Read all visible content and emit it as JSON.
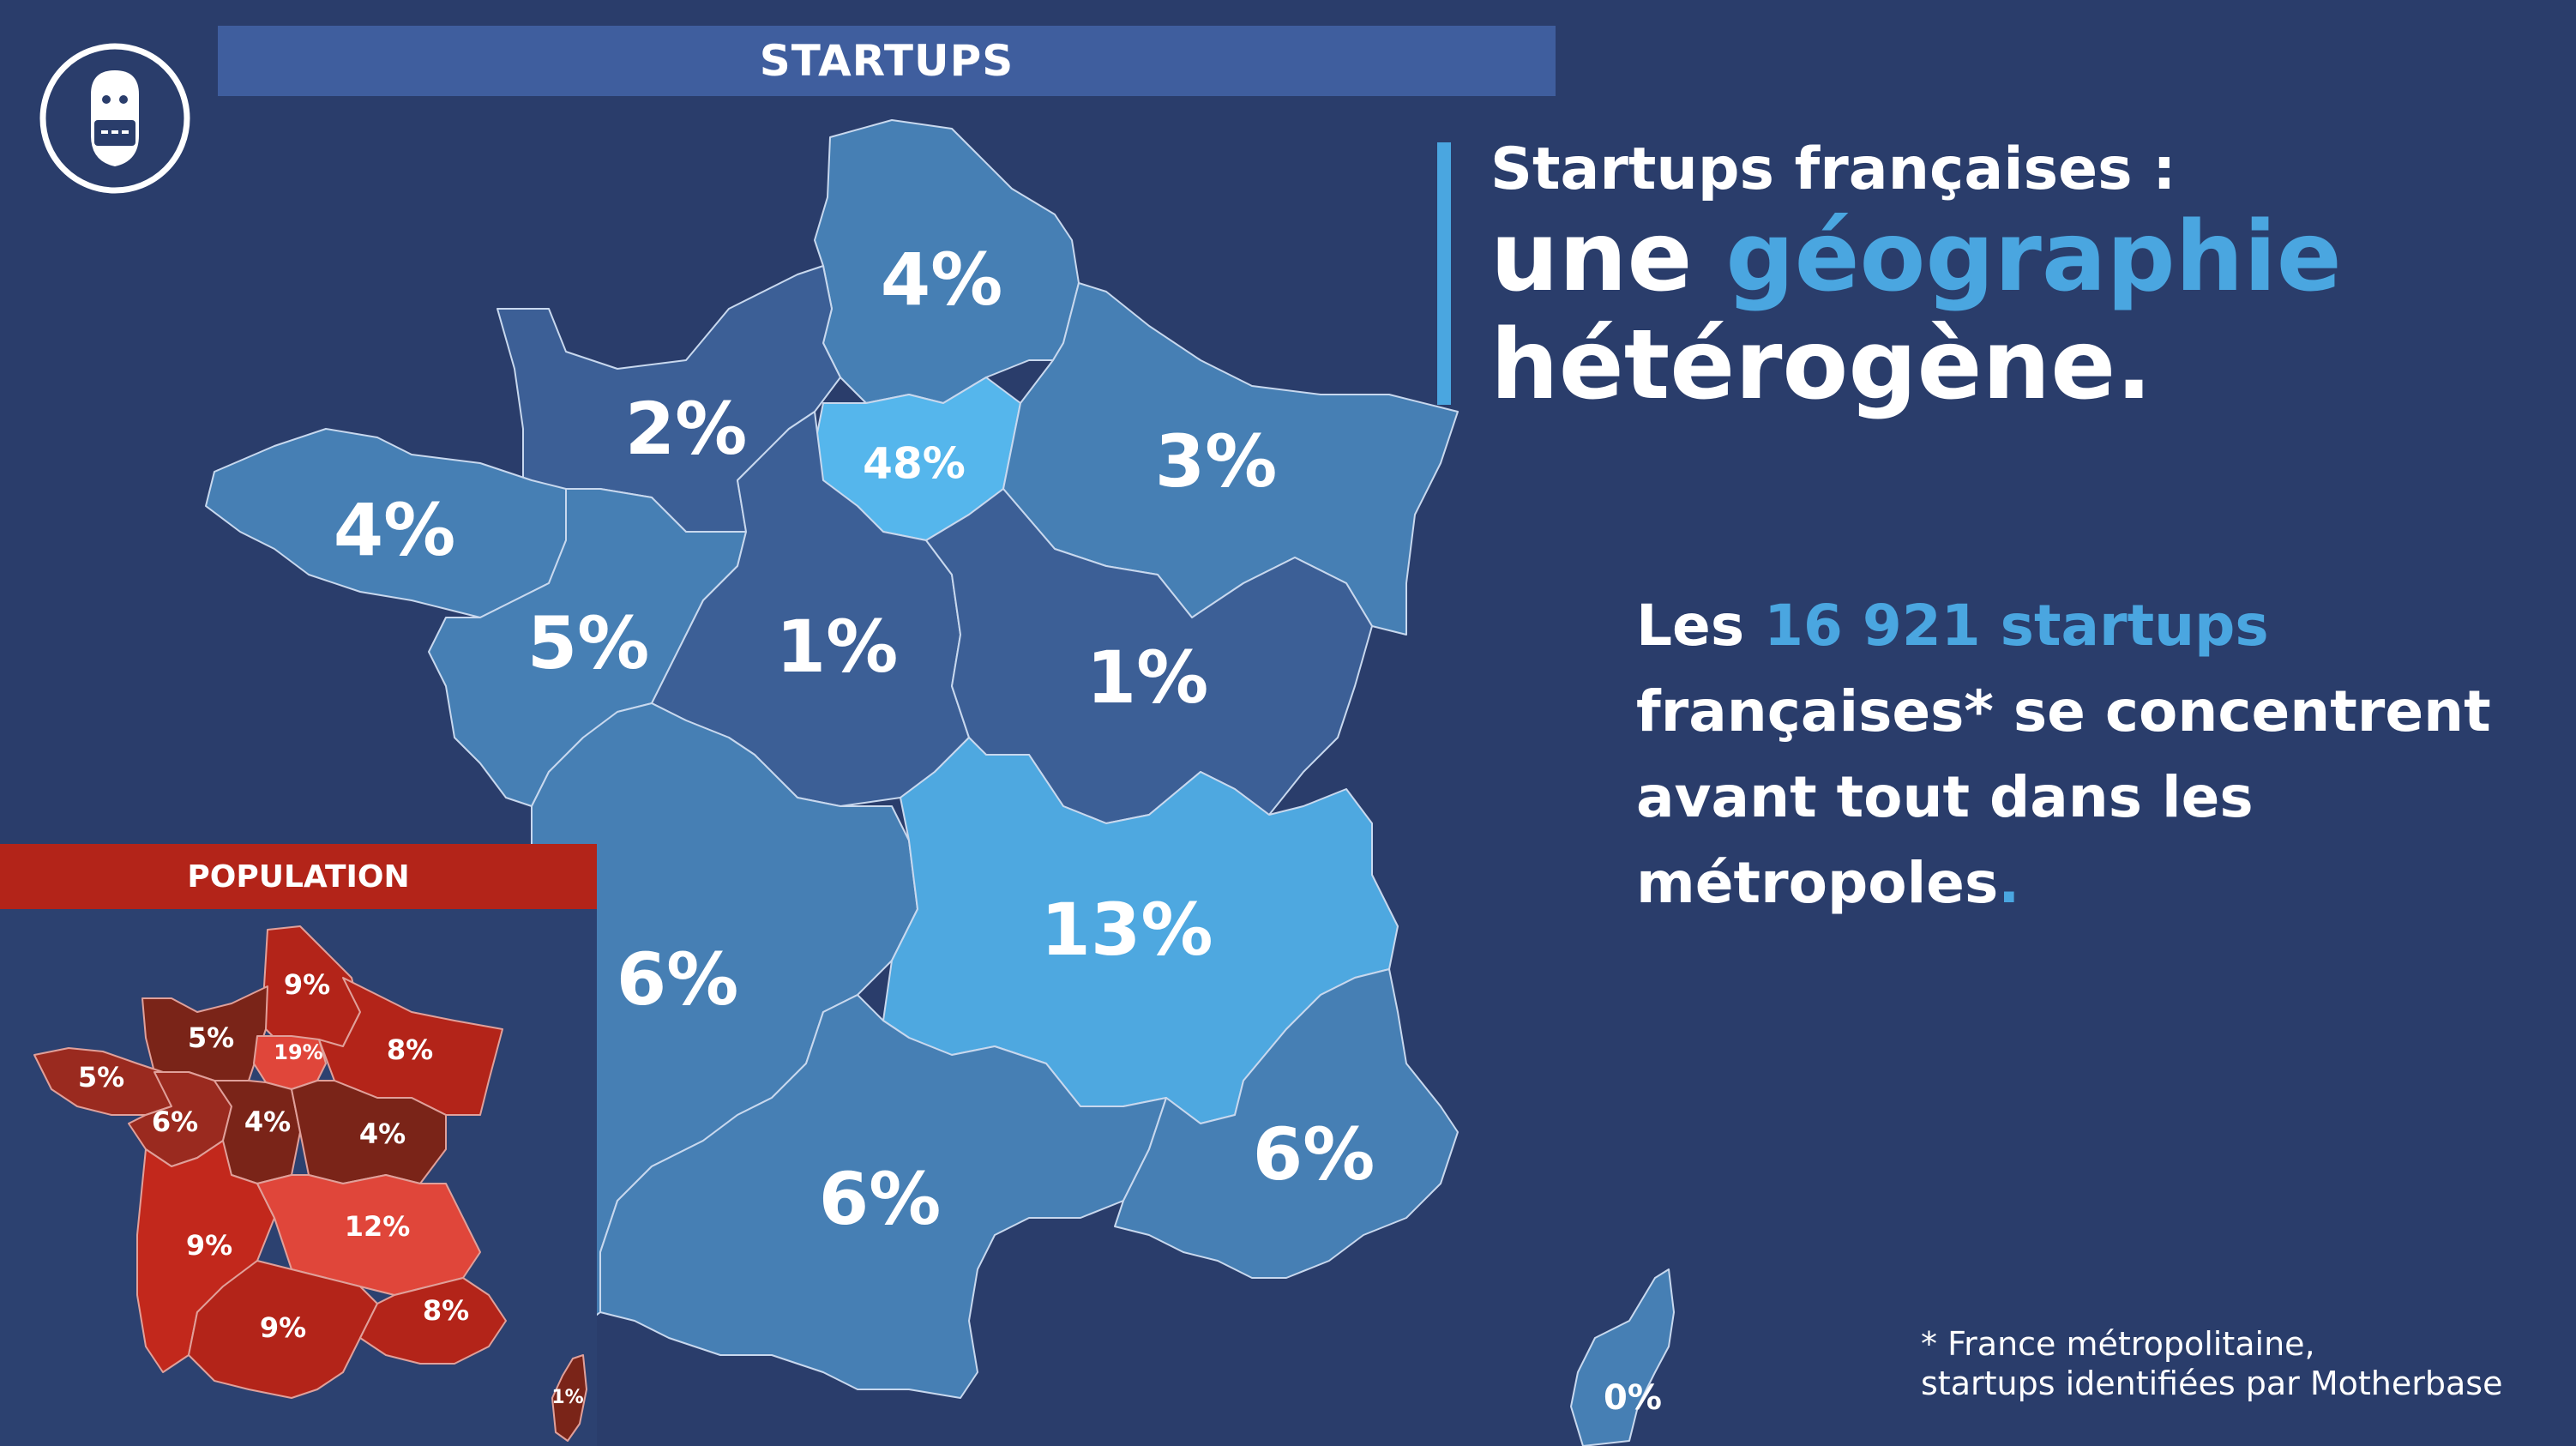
{
  "header": {
    "banner": "STARTUPS"
  },
  "logo": {
    "icon": "robot-head-icon"
  },
  "headline": {
    "line1": "Startups françaises :",
    "line2_a": "une ",
    "line2_b": "géographie",
    "line3": "hétérogène."
  },
  "body": {
    "p1": "Les ",
    "p2": "16 921 startups",
    "p3": "françaises* se concentrent avant tout dans les métropoles",
    "p4": "."
  },
  "footnote": {
    "line1": "* France métropolitaine,",
    "line2": "startups identifiées par Motherbase"
  },
  "colors": {
    "background": "#2a3d6b",
    "accent": "#4aa6e0",
    "region_dark": "#3c5f96",
    "region_mid": "#467fb4",
    "region_light": "#4ea8e0",
    "region_idf": "#55b6ec",
    "population_red": "#b32419"
  },
  "startups_map": {
    "hauts_de_france": "4%",
    "normandie": "2%",
    "ile_de_france": "48%",
    "grand_est": "3%",
    "bretagne": "4%",
    "pays_de_la_loire": "5%",
    "centre_val_de_loire": "1%",
    "bourgogne_franche_comte": "1%",
    "nouvelle_aquitaine": "6%",
    "auvergne_rhone_alpes": "13%",
    "occitanie": "6%",
    "provence_alpes_cote_d_azur": "6%",
    "corse": "0%"
  },
  "population": {
    "banner": "POPULATION",
    "hauts_de_france": "9%",
    "normandie": "5%",
    "ile_de_france": "19%",
    "grand_est": "8%",
    "bretagne": "5%",
    "pays_de_la_loire": "6%",
    "centre_val_de_loire": "4%",
    "bourgogne_franche_comte": "4%",
    "nouvelle_aquitaine": "9%",
    "auvergne_rhone_alpes": "12%",
    "occitanie": "9%",
    "provence_alpes_cote_d_azur": "8%",
    "corse": "1%"
  }
}
